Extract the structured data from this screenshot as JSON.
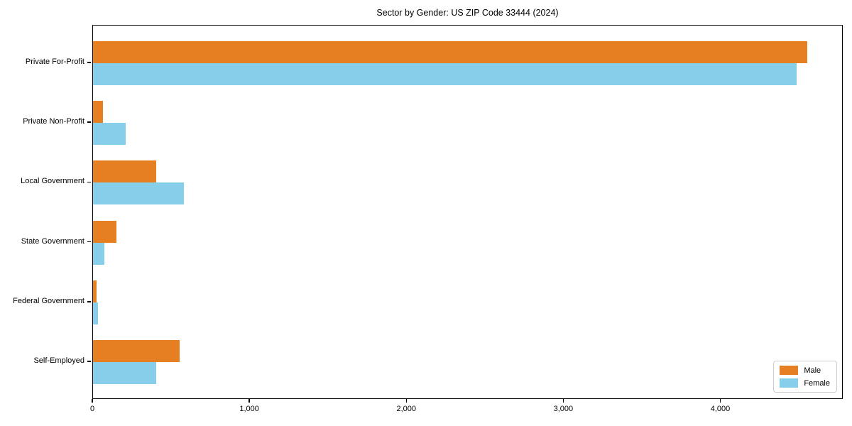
{
  "title": "Sector by Gender: US ZIP Code 33444 (2024)",
  "colors": {
    "male": "#e67e22",
    "female": "#87ceeb",
    "axis": "#000000",
    "legend_border": "#cccccc",
    "background": "#ffffff"
  },
  "chart_data": {
    "type": "bar",
    "orientation": "horizontal",
    "title": "Sector by Gender: US ZIP Code 33444 (2024)",
    "xlabel": "",
    "ylabel": "",
    "categories": [
      "Private For-Profit",
      "Private Non-Profit",
      "Local Government",
      "State Government",
      "Federal Government",
      "Self-Employed"
    ],
    "series": [
      {
        "name": "Male",
        "color": "#e67e22",
        "values": [
          4550,
          65,
          400,
          150,
          22,
          550
        ]
      },
      {
        "name": "Female",
        "color": "#87ceeb",
        "values": [
          4480,
          210,
          580,
          70,
          30,
          400
        ]
      }
    ],
    "xlim": [
      0,
      4780
    ],
    "xticks": [
      0,
      1000,
      2000,
      3000,
      4000
    ],
    "xtick_labels": [
      "0",
      "1,000",
      "2,000",
      "3,000",
      "4,000"
    ],
    "grid": false,
    "legend_position": "lower right"
  }
}
